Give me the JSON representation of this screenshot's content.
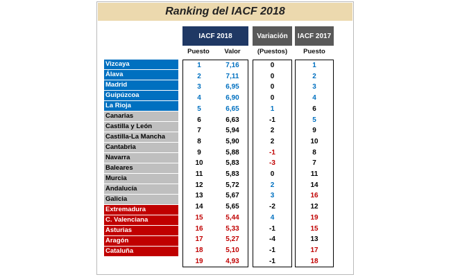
{
  "title": "Ranking del IACF 2018",
  "headers": {
    "iacf2018": "IACF 2018",
    "variacion": "Variación",
    "iacf2017": "IACF 2017",
    "puesto": "Puesto",
    "valor": "Valor",
    "puestos_paren": "(Puestos)",
    "puesto_2017": "Puesto"
  },
  "colors": {
    "blue": "#0070c0",
    "grey": "#bfbfbf",
    "red": "#c00000",
    "header_dark": "#1f3864",
    "header_grey": "#595959",
    "title_bg": "#ecd9ae"
  },
  "rows": [
    {
      "region": "Vizcaya",
      "group": "blue",
      "puesto": "1",
      "valor": "7,16",
      "variacion": "0",
      "var_color": "black",
      "puesto_2017": "1",
      "p17_color": "blue"
    },
    {
      "region": "Álava",
      "group": "blue",
      "puesto": "2",
      "valor": "7,11",
      "variacion": "0",
      "var_color": "black",
      "puesto_2017": "2",
      "p17_color": "blue"
    },
    {
      "region": "Madrid",
      "group": "blue",
      "puesto": "3",
      "valor": "6,95",
      "variacion": "0",
      "var_color": "black",
      "puesto_2017": "3",
      "p17_color": "blue"
    },
    {
      "region": "Guipúzcoa",
      "group": "blue",
      "puesto": "4",
      "valor": "6,90",
      "variacion": "0",
      "var_color": "black",
      "puesto_2017": "4",
      "p17_color": "blue"
    },
    {
      "region": "La Rioja",
      "group": "blue",
      "puesto": "5",
      "valor": "6,65",
      "variacion": "1",
      "var_color": "blue",
      "puesto_2017": "6",
      "p17_color": "black"
    },
    {
      "region": "Canarias",
      "group": "grey",
      "puesto": "6",
      "valor": "6,63",
      "variacion": "-1",
      "var_color": "black",
      "puesto_2017": "5",
      "p17_color": "blue"
    },
    {
      "region": "Castilla y León",
      "group": "grey",
      "puesto": "7",
      "valor": "5,94",
      "variacion": "2",
      "var_color": "black",
      "puesto_2017": "9",
      "p17_color": "black"
    },
    {
      "region": "Castilla-La Mancha",
      "group": "grey",
      "puesto": "8",
      "valor": "5,90",
      "variacion": "2",
      "var_color": "black",
      "puesto_2017": "10",
      "p17_color": "black"
    },
    {
      "region": "Cantabria",
      "group": "grey",
      "puesto": "9",
      "valor": "5,88",
      "variacion": "-1",
      "var_color": "red",
      "puesto_2017": "8",
      "p17_color": "black"
    },
    {
      "region": "Navarra",
      "group": "grey",
      "puesto": "10",
      "valor": "5,83",
      "variacion": "-3",
      "var_color": "red",
      "puesto_2017": "7",
      "p17_color": "black"
    },
    {
      "region": "Baleares",
      "group": "grey",
      "puesto": "11",
      "valor": "5,83",
      "variacion": "0",
      "var_color": "black",
      "puesto_2017": "11",
      "p17_color": "black"
    },
    {
      "region": "Murcia",
      "group": "grey",
      "puesto": "12",
      "valor": "5,72",
      "variacion": "2",
      "var_color": "blue",
      "puesto_2017": "14",
      "p17_color": "black"
    },
    {
      "region": "Andalucía",
      "group": "grey",
      "puesto": "13",
      "valor": "5,67",
      "variacion": "3",
      "var_color": "blue",
      "puesto_2017": "16",
      "p17_color": "red"
    },
    {
      "region": "Galicia",
      "group": "grey",
      "puesto": "14",
      "valor": "5,65",
      "variacion": "-2",
      "var_color": "black",
      "puesto_2017": "12",
      "p17_color": "black"
    },
    {
      "region": "Extremadura",
      "group": "red",
      "puesto": "15",
      "valor": "5,44",
      "variacion": "4",
      "var_color": "blue",
      "puesto_2017": "19",
      "p17_color": "red"
    },
    {
      "region": "C. Valenciana",
      "group": "red",
      "puesto": "16",
      "valor": "5,33",
      "variacion": "-1",
      "var_color": "black",
      "puesto_2017": "15",
      "p17_color": "red"
    },
    {
      "region": "Asturias",
      "group": "red",
      "puesto": "17",
      "valor": "5,27",
      "variacion": "-4",
      "var_color": "black",
      "puesto_2017": "13",
      "p17_color": "black"
    },
    {
      "region": "Aragón",
      "group": "red",
      "puesto": "18",
      "valor": "5,10",
      "variacion": "-1",
      "var_color": "black",
      "puesto_2017": "17",
      "p17_color": "red"
    },
    {
      "region": "Cataluña",
      "group": "red",
      "puesto": "19",
      "valor": "4,93",
      "variacion": "-1",
      "var_color": "black",
      "puesto_2017": "18",
      "p17_color": "red"
    }
  ]
}
